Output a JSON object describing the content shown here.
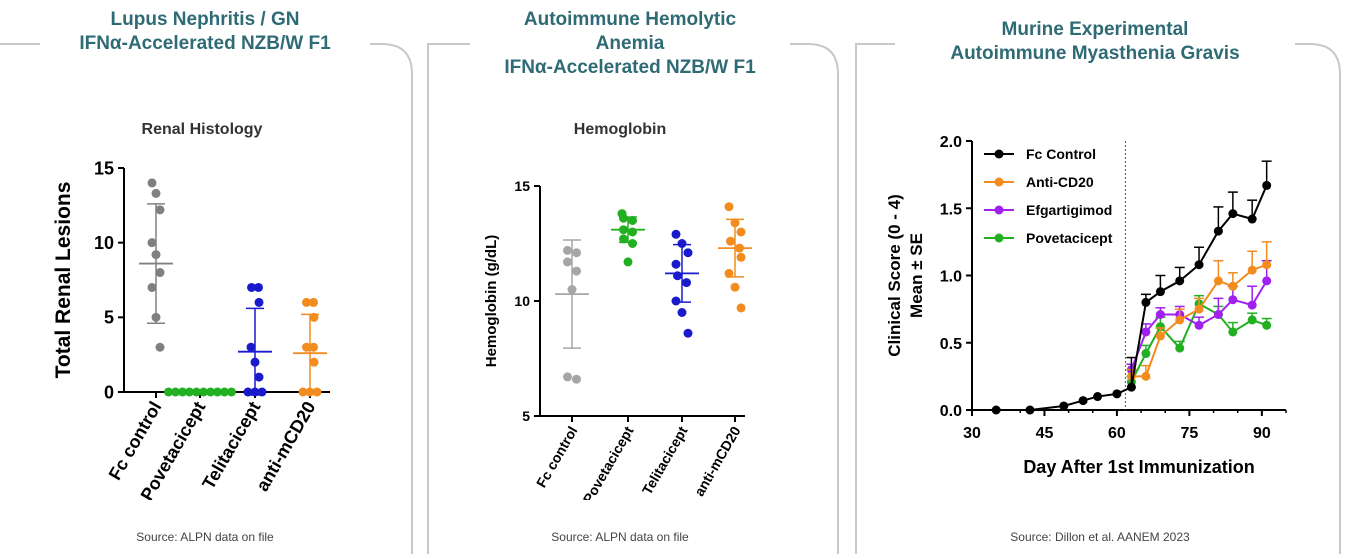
{
  "panels": [
    {
      "title_lines": [
        "Lupus Nephritis / GN",
        "IFNα-Accelerated NZB/W F1"
      ],
      "source": "Source: ALPN data on file"
    },
    {
      "title_lines": [
        "Autoimmune Hemolytic",
        "Anemia",
        "IFNα-Accelerated NZB/W F1"
      ],
      "source": "Source: ALPN data on file"
    },
    {
      "title_lines": [
        "Murine Experimental",
        "Autoimmune Myasthenia Gravis"
      ],
      "source": "Source: Dillon et al. AANEM 2023"
    }
  ],
  "chart_data": [
    {
      "type": "scatter",
      "title": "Renal Histology",
      "ylabel": "Total Renal Lesions",
      "xlabel": "",
      "ylim": [
        0,
        15
      ],
      "yticks": [
        "0",
        "5",
        "10",
        "15"
      ],
      "categories": [
        "Fc control",
        "Povetacicept",
        "Telitacicept",
        "anti-mCD20"
      ],
      "colors": [
        "#808080",
        "#22b022",
        "#1a1acd",
        "#f28c1e"
      ],
      "points": [
        [
          14,
          13.3,
          12.2,
          10,
          9.2,
          8,
          7,
          5,
          3
        ],
        [
          0,
          0,
          0,
          0,
          0,
          0,
          0,
          0,
          0,
          0
        ],
        [
          7,
          7,
          6,
          3,
          2,
          1,
          0,
          0,
          0
        ],
        [
          6,
          6,
          5,
          3,
          3,
          2,
          0,
          0,
          0
        ]
      ],
      "means": [
        8.6,
        0,
        2.7,
        2.6
      ],
      "sd": [
        4.0,
        0,
        2.9,
        2.6
      ]
    },
    {
      "type": "scatter",
      "title": "Hemoglobin",
      "ylabel": "Hemoglobin (g/dL)",
      "xlabel": "",
      "ylim": [
        5,
        15
      ],
      "yticks": [
        "5",
        "10",
        "15"
      ],
      "categories": [
        "Fc control",
        "Povetacicept",
        "Telitacicept",
        "anti-mCD20"
      ],
      "colors": [
        "#a6a6a6",
        "#22b022",
        "#1a1acd",
        "#f28c1e"
      ],
      "points": [
        [
          12.2,
          12.1,
          11.7,
          11.3,
          10.5,
          6.7,
          6.6
        ],
        [
          13.8,
          13.6,
          13.5,
          13.1,
          13.0,
          12.7,
          12.5,
          11.7
        ],
        [
          12.9,
          12.5,
          12.1,
          11.6,
          11.1,
          10.8,
          10.0,
          9.5,
          8.6
        ],
        [
          14.1,
          13.4,
          13.0,
          12.6,
          12.3,
          11.9,
          11.2,
          10.6,
          9.7
        ]
      ],
      "means": [
        10.3,
        13.1,
        11.2,
        12.3
      ],
      "sd": [
        2.35,
        0.55,
        1.25,
        1.25
      ]
    },
    {
      "type": "line",
      "xlabel": "Day After 1st Immunization",
      "ylabel": "Clinical Score (0 - 4)",
      "ylabel2": "Mean ± SE",
      "xlim": [
        30,
        95
      ],
      "ylim": [
        0,
        2
      ],
      "xticks": [
        "30",
        "45",
        "60",
        "75",
        "90"
      ],
      "yticks": [
        "0.0",
        "0.5",
        "1.0",
        "1.5",
        "2.0"
      ],
      "vline_x": 63,
      "legend_position": "top-left",
      "series": [
        {
          "name": "Fc Control",
          "color": "#000000",
          "x": [
            35,
            42,
            49,
            53,
            56,
            60,
            63,
            66,
            69,
            73,
            77,
            81,
            84,
            88,
            91
          ],
          "y": [
            0,
            0,
            0.03,
            0.07,
            0.1,
            0.12,
            0.17,
            0.8,
            0.88,
            0.96,
            1.08,
            1.33,
            1.46,
            1.42,
            1.67
          ],
          "se": [
            0,
            0,
            0,
            0,
            0,
            0,
            0.22,
            0.06,
            0.12,
            0.1,
            0.13,
            0.18,
            0.16,
            0.14,
            0.18
          ]
        },
        {
          "name": "Anti-CD20",
          "color": "#f28c1e",
          "x": [
            63,
            66,
            69,
            73,
            77,
            81,
            84,
            88,
            91
          ],
          "y": [
            0.25,
            0.25,
            0.55,
            0.67,
            0.75,
            0.96,
            0.92,
            1.04,
            1.08
          ],
          "se": [
            0.05,
            0.08,
            0.06,
            0.08,
            0.08,
            0.15,
            0.1,
            0.14,
            0.17
          ]
        },
        {
          "name": "Efgartigimod",
          "color": "#a020f0",
          "x": [
            63,
            66,
            69,
            73,
            77,
            81,
            84,
            88,
            91
          ],
          "y": [
            0.3,
            0.58,
            0.71,
            0.71,
            0.63,
            0.71,
            0.82,
            0.78,
            0.96
          ],
          "se": [
            0.04,
            0.06,
            0.05,
            0.06,
            0.06,
            0.12,
            0.1,
            0.14,
            0.15
          ]
        },
        {
          "name": "Povetacicept",
          "color": "#22b022",
          "x": [
            63,
            66,
            69,
            73,
            77,
            81,
            84,
            88,
            91
          ],
          "y": [
            0.21,
            0.42,
            0.62,
            0.46,
            0.79,
            0.71,
            0.58,
            0.67,
            0.63
          ],
          "se": [
            0.04,
            0.06,
            0.07,
            0.05,
            0.06,
            0.06,
            0.07,
            0.05,
            0.05
          ]
        }
      ]
    }
  ]
}
